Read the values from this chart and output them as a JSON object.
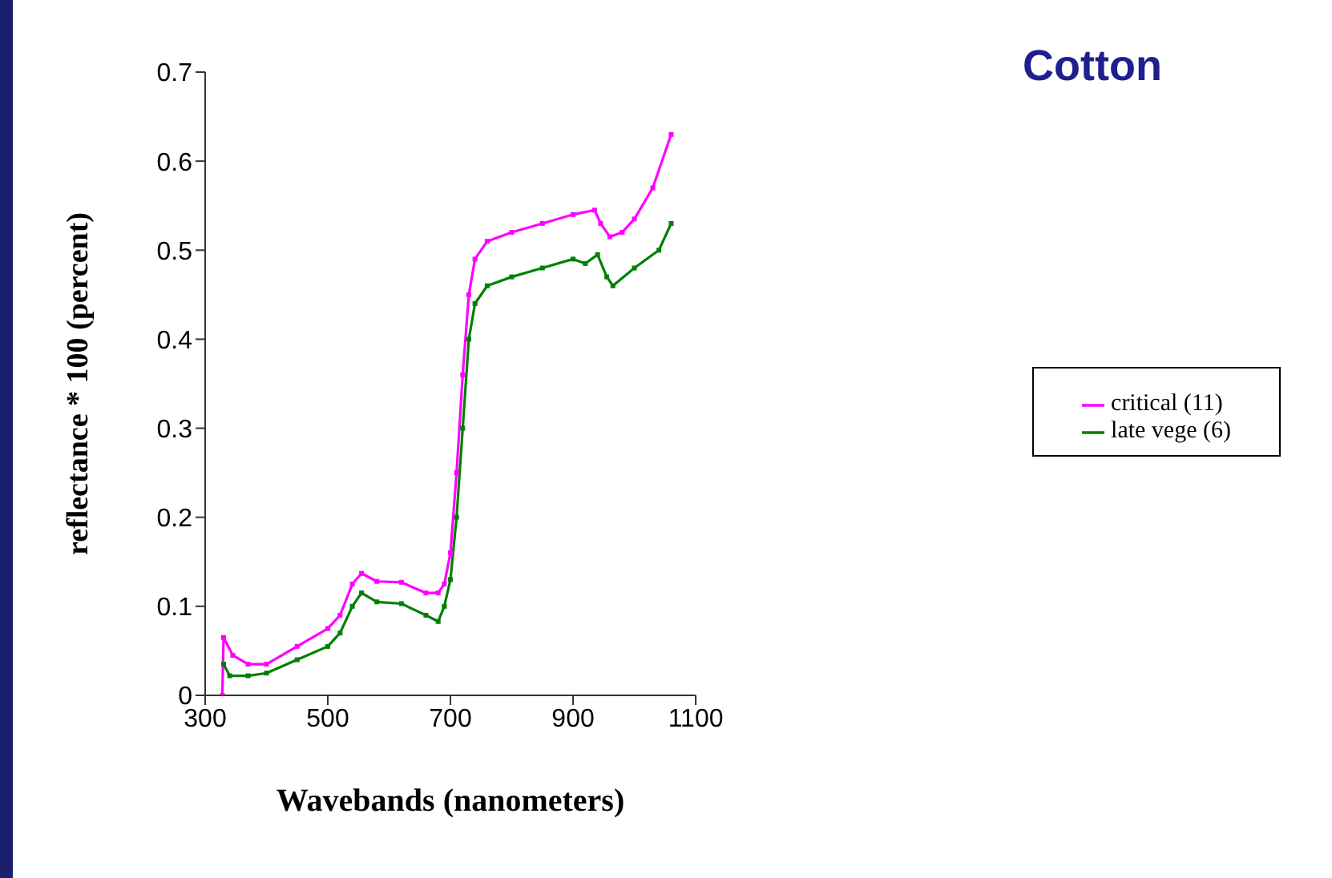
{
  "chart_data": {
    "type": "line",
    "title": "Cotton",
    "xlabel": "Wavebands (nanometers)",
    "ylabel": "reflectance * 100 (percent)",
    "xlim": [
      300,
      1100
    ],
    "xticks": [
      300,
      500,
      700,
      900,
      1100
    ],
    "ylim": [
      0,
      0.7
    ],
    "yticks": [
      0,
      0.1,
      0.2,
      0.3,
      0.4,
      0.5,
      0.6,
      0.7
    ],
    "grid": false,
    "legend": "right",
    "marker": "square",
    "line_style": "solid",
    "series": [
      {
        "name": "late vege (6)",
        "color": "#008000",
        "x": [
          330,
          340,
          370,
          400,
          450,
          500,
          520,
          540,
          555,
          580,
          620,
          660,
          680,
          690,
          700,
          710,
          720,
          730,
          740,
          760,
          800,
          850,
          900,
          920,
          940,
          955,
          965,
          1000,
          1040,
          1060
        ],
        "values": [
          0.035,
          0.022,
          0.022,
          0.025,
          0.04,
          0.055,
          0.07,
          0.1,
          0.115,
          0.105,
          0.103,
          0.09,
          0.083,
          0.1,
          0.13,
          0.2,
          0.3,
          0.4,
          0.44,
          0.46,
          0.47,
          0.48,
          0.49,
          0.485,
          0.495,
          0.47,
          0.46,
          0.48,
          0.5,
          0.53
        ]
      },
      {
        "name": "critical (11)",
        "color": "#ff00ff",
        "x": [
          328,
          330,
          345,
          370,
          400,
          450,
          500,
          520,
          540,
          555,
          580,
          620,
          660,
          680,
          690,
          700,
          710,
          720,
          730,
          740,
          760,
          800,
          850,
          900,
          935,
          945,
          960,
          980,
          1000,
          1030,
          1060
        ],
        "values": [
          0,
          0.065,
          0.045,
          0.035,
          0.035,
          0.055,
          0.075,
          0.09,
          0.125,
          0.137,
          0.128,
          0.127,
          0.115,
          0.115,
          0.125,
          0.16,
          0.25,
          0.36,
          0.45,
          0.49,
          0.51,
          0.52,
          0.53,
          0.54,
          0.545,
          0.53,
          0.515,
          0.52,
          0.535,
          0.57,
          0.63
        ]
      }
    ]
  }
}
